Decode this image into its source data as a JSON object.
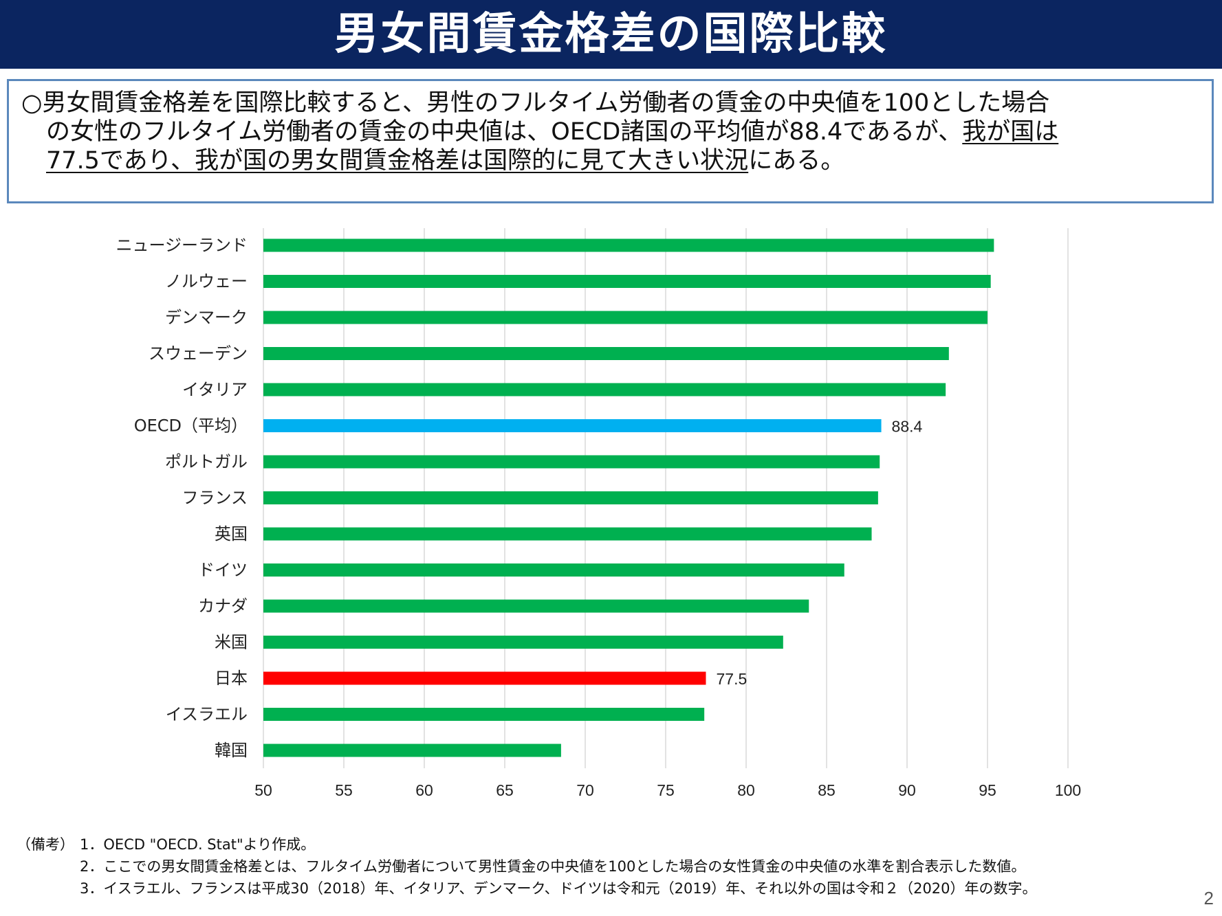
{
  "title": "男女間賃金格差の国際比較",
  "summary": {
    "bullet": "○",
    "line1": "男女間賃金格差を国際比較すると、男性のフルタイム労働者の賃金の中央値を100とした場合",
    "line2_plain": "の女性のフルタイム労働者の賃金の中央値は、OECD諸国の平均値が88.4であるが、",
    "line2_underlined": "我が国は",
    "line3_underlined": "77.5であり、我が国の男女間賃金格差は国際的に見て大きい状況",
    "line3_plain": "にある。"
  },
  "chart_data": {
    "type": "bar",
    "orientation": "horizontal",
    "categories": [
      "ニュージーランド",
      "ノルウェー",
      "デンマーク",
      "スウェーデン",
      "イタリア",
      "OECD（平均）",
      "ポルトガル",
      "フランス",
      "英国",
      "ドイツ",
      "カナダ",
      "米国",
      "日本",
      "イスラエル",
      "韓国"
    ],
    "values": [
      95.4,
      95.2,
      95.0,
      92.6,
      92.4,
      88.4,
      88.3,
      88.2,
      87.8,
      86.1,
      83.9,
      82.3,
      77.5,
      77.4,
      68.5
    ],
    "bar_colors": [
      "#00b050",
      "#00b050",
      "#00b050",
      "#00b050",
      "#00b050",
      "#00b0f0",
      "#00b050",
      "#00b050",
      "#00b050",
      "#00b050",
      "#00b050",
      "#00b050",
      "#ff0000",
      "#00b050",
      "#00b050"
    ],
    "data_labels": [
      "",
      "",
      "",
      "",
      "",
      "88.4",
      "",
      "",
      "",
      "",
      "",
      "",
      "77.5",
      "",
      ""
    ],
    "xlim": [
      50,
      100
    ],
    "xticks": [
      "50",
      "55",
      "60",
      "65",
      "70",
      "75",
      "80",
      "85",
      "90",
      "95",
      "100"
    ],
    "grid": "vertical",
    "title": "",
    "xlabel": "",
    "ylabel": ""
  },
  "notes": {
    "head": "（備考）",
    "items": [
      "1．OECD \"OECD. Stat\"より作成。",
      "2．ここでの男女間賃金格差とは、フルタイム労働者について男性賃金の中央値を100とした場合の女性賃金の中央値の水準を割合表示した数値。",
      "3．イスラエル、フランスは平成30（2018）年、イタリア、デンマーク、ドイツは令和元（2019）年、それ以外の国は令和２（2020）年の数字。"
    ]
  },
  "page_number": "2"
}
